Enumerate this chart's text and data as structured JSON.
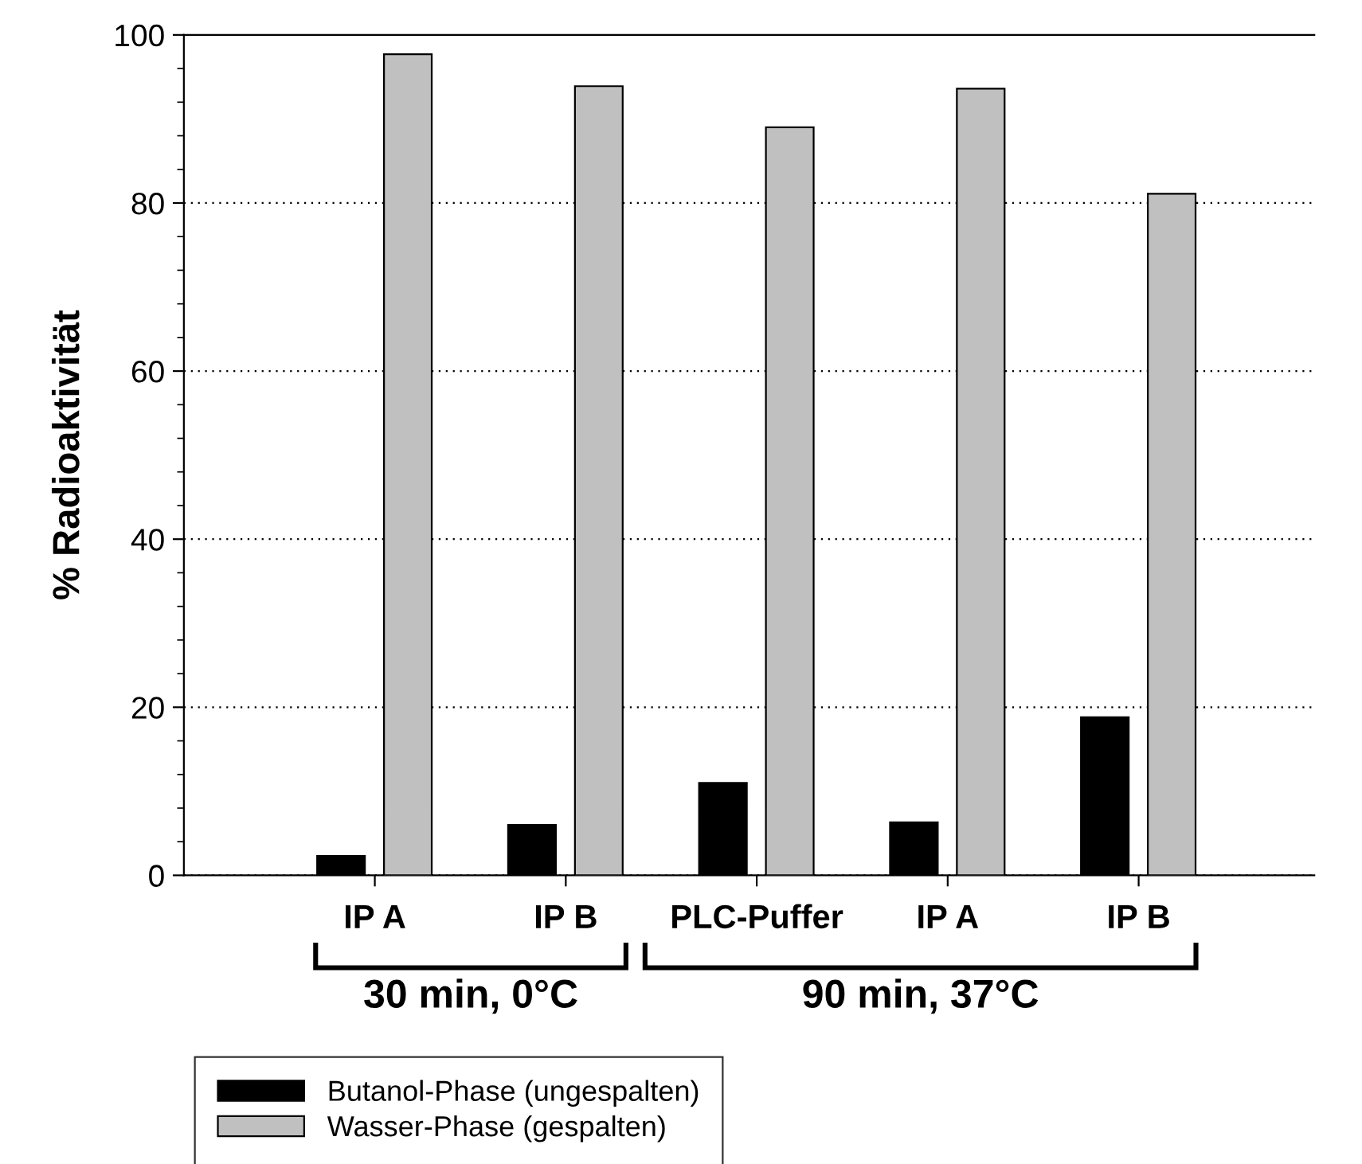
{
  "chart_data": {
    "type": "bar",
    "ylabel": "% Radioaktivität",
    "categories": [
      "IP A",
      "IP B",
      "PLC-Puffer",
      "IP A",
      "IP B"
    ],
    "series": [
      {
        "name": "Butanol-Phase (ungespalten)",
        "color": "#000000",
        "values": [
          2.3,
          6.0,
          11.0,
          6.3,
          18.8
        ]
      },
      {
        "name": "Wasser-Phase (gespalten)",
        "color": "#c0c0c0",
        "values": [
          97.7,
          93.9,
          89.0,
          93.6,
          81.1
        ]
      }
    ],
    "ylim": [
      0,
      100
    ],
    "yticks": [
      0,
      20,
      40,
      60,
      80,
      100
    ],
    "grid": "y",
    "legend": "bottom left",
    "annotations": [
      "30 min, 0°C",
      "90 min, 37°C"
    ]
  }
}
